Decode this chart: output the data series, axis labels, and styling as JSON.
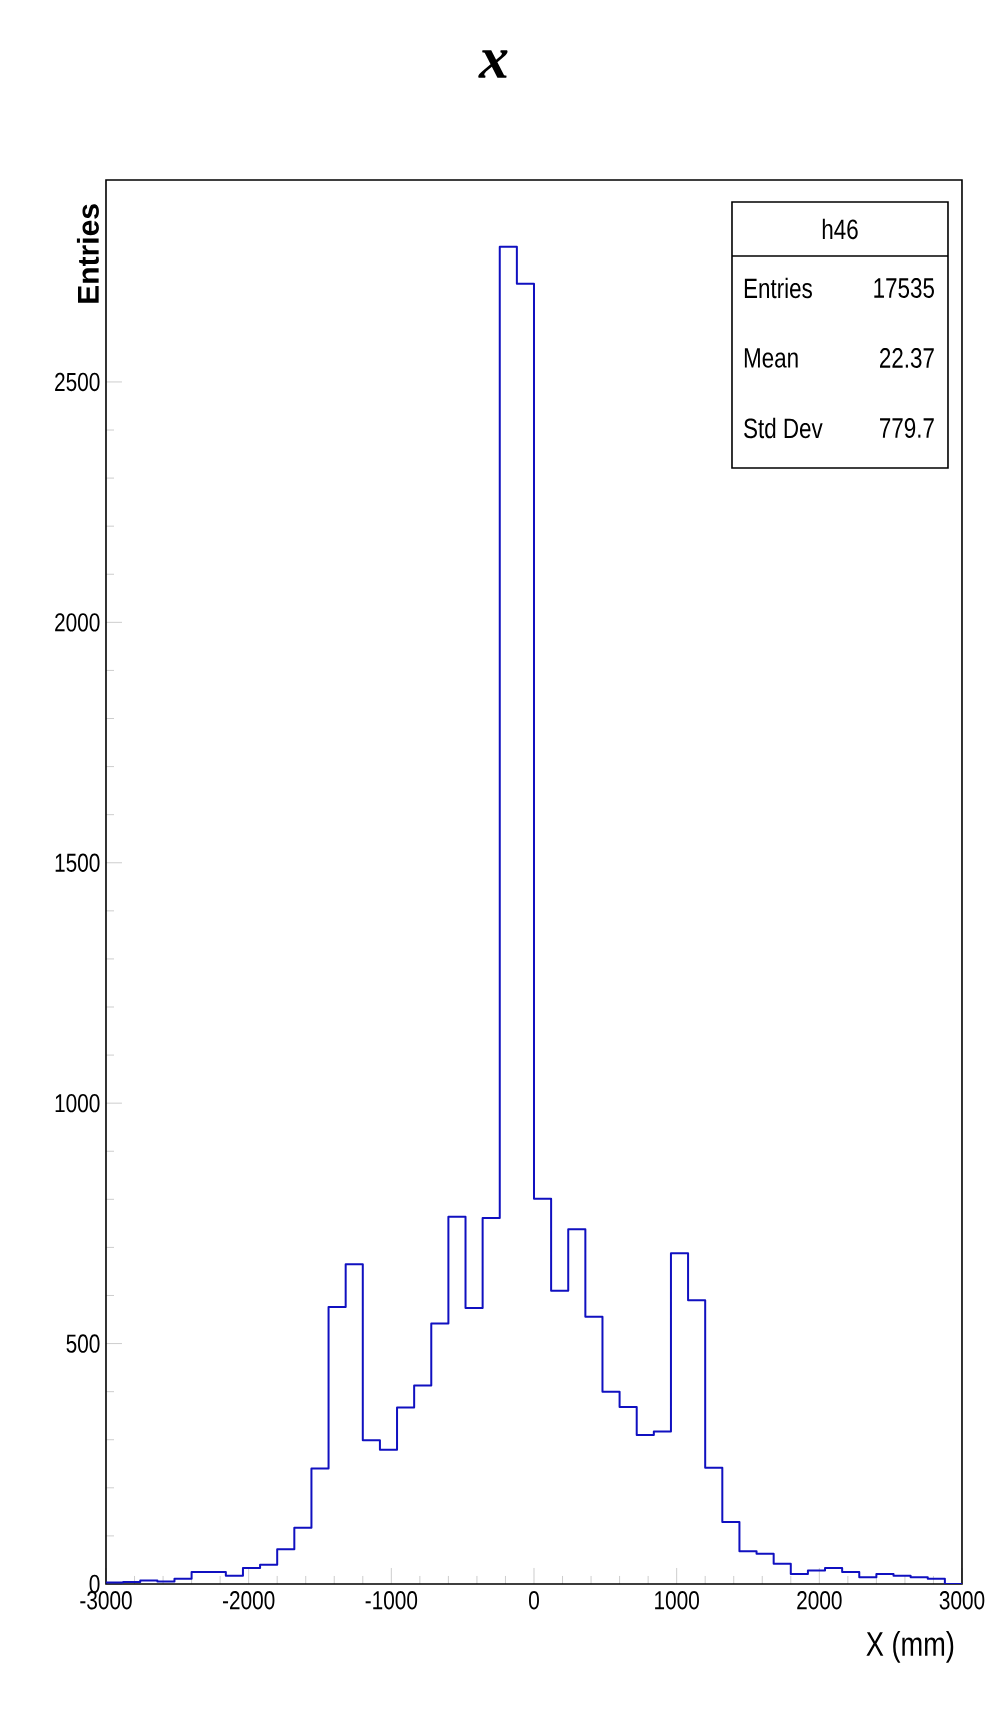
{
  "chart_data": {
    "type": "histogram",
    "title": "x",
    "xlabel": "X (mm)",
    "ylabel": "Entries",
    "bins": [
      -3000,
      -2880,
      -2760,
      -2640,
      -2520,
      -2400,
      -2280,
      -2160,
      -2040,
      -1920,
      -1800,
      -1680,
      -1560,
      -1440,
      -1320,
      -1200,
      -1080,
      -960,
      -840,
      -720,
      -600,
      -480,
      -360,
      -240,
      -120,
      0,
      120,
      240,
      360,
      480,
      600,
      720,
      840,
      960,
      1080,
      1200,
      1320,
      1440,
      1560,
      1680,
      1800,
      1920,
      2040,
      2160,
      2280,
      2400,
      2520,
      2640,
      2760,
      2880,
      3000
    ],
    "values": [
      3,
      4,
      7,
      5,
      11,
      25,
      25,
      17,
      33,
      40,
      72,
      117,
      240,
      576,
      665,
      299,
      279,
      367,
      413,
      542,
      764,
      574,
      761,
      2781,
      2704,
      801,
      610,
      738,
      556,
      400,
      368,
      310,
      317,
      688,
      590,
      242,
      129,
      68,
      63,
      42,
      21,
      28,
      33,
      25,
      14,
      21,
      17,
      14,
      11,
      0
    ],
    "color": "#1010c0",
    "xlim": [
      -3000,
      3000
    ],
    "ylim": [
      0,
      2920
    ],
    "xticks": [
      -3000,
      -2000,
      -1000,
      0,
      1000,
      2000,
      3000
    ],
    "yticks": [
      0,
      500,
      1000,
      1500,
      2000,
      2500
    ],
    "annotations": [
      "h46",
      "Entries",
      "17535",
      "Mean",
      "22.37",
      "Std Dev",
      "779.7"
    ],
    "grid": false
  }
}
